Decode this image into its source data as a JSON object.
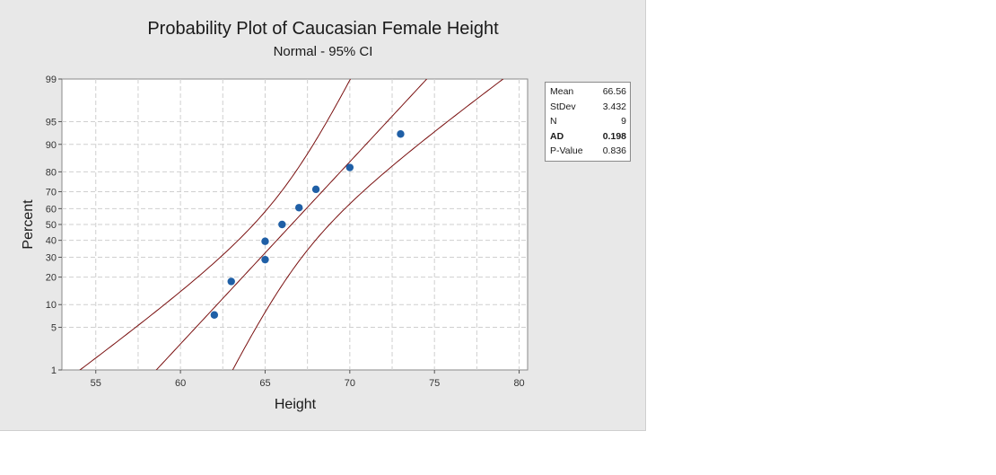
{
  "chart_data": {
    "type": "scatter",
    "title": "Probability Plot of Caucasian Female Height",
    "subtitle": "Normal - 95% CI",
    "xlabel": "Height",
    "ylabel": "Percent",
    "xlim": [
      53,
      80.5
    ],
    "x_ticks": [
      55,
      60,
      65,
      70,
      75,
      80
    ],
    "y_ticks": [
      1,
      5,
      10,
      20,
      30,
      40,
      50,
      60,
      70,
      80,
      90,
      95,
      99
    ],
    "y_scale": "normal-probability",
    "grid": true,
    "points": [
      {
        "x": 62,
        "y": 7.4
      },
      {
        "x": 63,
        "y": 18.1
      },
      {
        "x": 65,
        "y": 28.7
      },
      {
        "x": 65,
        "y": 39.4
      },
      {
        "x": 66,
        "y": 50.0
      },
      {
        "x": 67,
        "y": 60.6
      },
      {
        "x": 68,
        "y": 71.3
      },
      {
        "x": 70,
        "y": 81.9
      },
      {
        "x": 73,
        "y": 92.6
      }
    ],
    "fit": {
      "mean": 66.56,
      "stdev": 3.432,
      "n": 9
    },
    "ci_level": 0.95,
    "colors": {
      "points": "#1f5fa6",
      "lines": "#7a1010",
      "grid": "#cfcfcf"
    }
  },
  "stats": [
    {
      "label": "Mean",
      "value": "66.56",
      "bold": false
    },
    {
      "label": "StDev",
      "value": "3.432",
      "bold": false
    },
    {
      "label": "N",
      "value": "9",
      "bold": false
    },
    {
      "label": "AD",
      "value": "0.198",
      "bold": true
    },
    {
      "label": "P-Value",
      "value": "0.836",
      "bold": false
    }
  ]
}
